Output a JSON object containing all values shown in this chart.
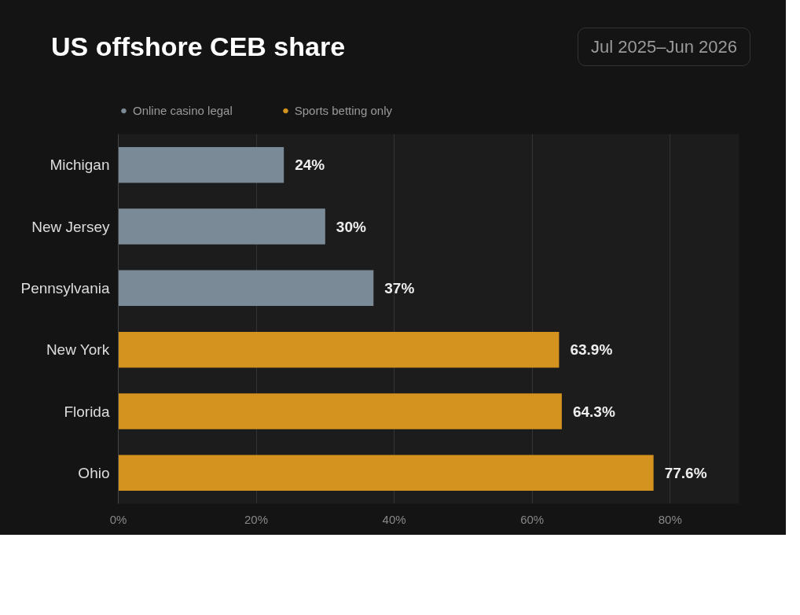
{
  "chart_data": {
    "type": "bar",
    "orientation": "horizontal",
    "title": "US offshore CEB share",
    "subtitle": "Jul 2025–Jun 2026",
    "categories": [
      "Michigan",
      "New Jersey",
      "Pennsylvania",
      "New York",
      "Florida",
      "Ohio"
    ],
    "series": [
      {
        "name": "Online casino legal",
        "color": "#7a8a96",
        "values": [
          24,
          30,
          37,
          null,
          null,
          null
        ],
        "value_labels": [
          "24%",
          "30%",
          "37%",
          null,
          null,
          null
        ]
      },
      {
        "name": "Sports betting only",
        "color": "#d4921e",
        "values": [
          null,
          null,
          null,
          63.9,
          64.3,
          77.6
        ],
        "value_labels": [
          null,
          null,
          null,
          "63.9%",
          "64.3%",
          "77.6%"
        ]
      }
    ],
    "xlim": [
      0,
      90
    ],
    "xticks": [
      {
        "value": 0,
        "label": "0%"
      },
      {
        "value": 20,
        "label": "20%"
      },
      {
        "value": 40,
        "label": "40%"
      },
      {
        "value": 60,
        "label": "60%"
      },
      {
        "value": 80,
        "label": "80%"
      }
    ],
    "grid": "x",
    "legend": "top left"
  }
}
